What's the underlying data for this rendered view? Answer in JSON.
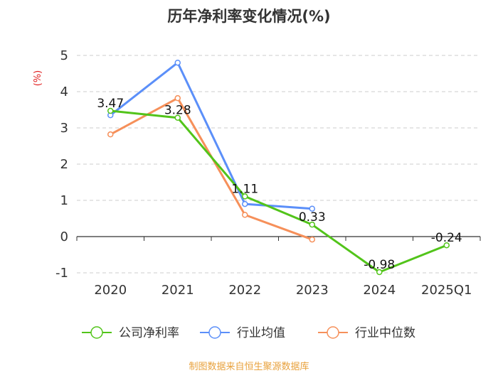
{
  "chart_data": {
    "type": "line",
    "title": "历年净利率变化情况(%)",
    "ylabel": "(%)",
    "xlabel": "",
    "categories": [
      "2020",
      "2021",
      "2022",
      "2023",
      "2024",
      "2025Q1"
    ],
    "ylim": [
      -1,
      5
    ],
    "yticks": [
      5,
      4,
      3,
      2,
      1,
      0,
      -1
    ],
    "grid": true,
    "legend_position": "bottom",
    "series": [
      {
        "name": "公司净利率",
        "color": "#52c41a",
        "values": [
          3.47,
          3.28,
          1.11,
          0.33,
          -0.98,
          -0.24
        ],
        "labels": [
          "3.47",
          "3.28",
          "1.11",
          "0.33",
          "-0.98",
          "-0.24"
        ]
      },
      {
        "name": "行业均值",
        "color": "#5b8ff9",
        "values": [
          3.35,
          4.8,
          0.9,
          0.77,
          null,
          null
        ]
      },
      {
        "name": "行业中位数",
        "color": "#f6905a",
        "values": [
          2.82,
          3.82,
          0.6,
          -0.08,
          null,
          null
        ]
      }
    ]
  },
  "source": "制图数据来自恒生聚源数据库"
}
